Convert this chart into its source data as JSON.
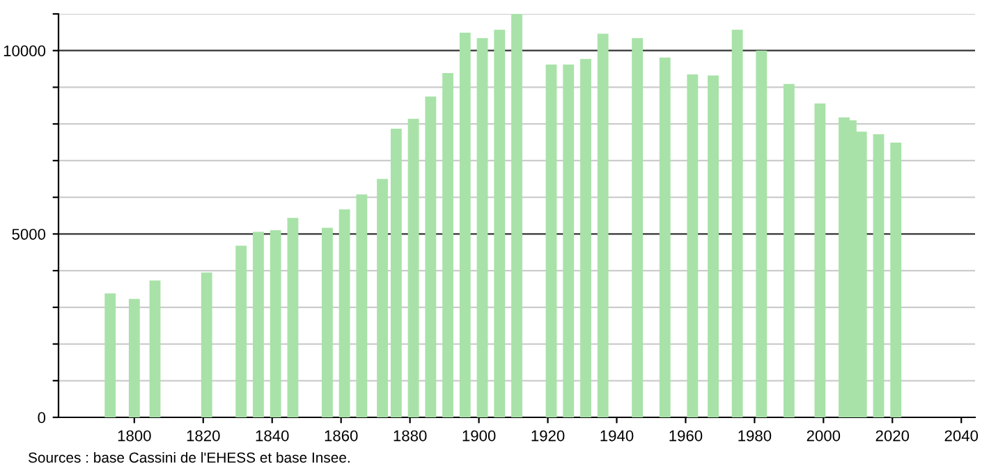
{
  "chart_data": {
    "type": "bar",
    "color": "#a8e2a8",
    "x": [
      1793,
      1800,
      1806,
      1821,
      1831,
      1836,
      1841,
      1846,
      1856,
      1861,
      1866,
      1872,
      1876,
      1881,
      1886,
      1891,
      1896,
      1901,
      1906,
      1911,
      1921,
      1926,
      1931,
      1936,
      1946,
      1954,
      1962,
      1968,
      1975,
      1982,
      1990,
      1999,
      2006,
      2008,
      2011,
      2016,
      2021
    ],
    "values": [
      3380,
      3230,
      3730,
      3950,
      4680,
      5060,
      5100,
      5440,
      5170,
      5670,
      6080,
      6500,
      7870,
      8140,
      8750,
      9390,
      10490,
      10340,
      10570,
      11000,
      9620,
      9620,
      9770,
      10460,
      10340,
      9810,
      9350,
      9320,
      10570,
      10000,
      9090,
      8560,
      8180,
      8100,
      7790,
      7720,
      7490
    ],
    "xlim": [
      1778,
      2044
    ],
    "ylim": [
      0,
      11000
    ],
    "xticks": [
      1800,
      1820,
      1840,
      1860,
      1880,
      1900,
      1920,
      1940,
      1960,
      1980,
      2000,
      2020,
      2040
    ],
    "yticks": [
      0,
      {
        "value": 1000,
        "label": null
      },
      {
        "value": 2000,
        "label": null
      },
      {
        "value": 3000,
        "label": null
      },
      {
        "value": 4000,
        "label": null
      },
      5000,
      {
        "value": 6000,
        "label": null
      },
      {
        "value": 7000,
        "label": null
      },
      {
        "value": 8000,
        "label": null
      },
      {
        "value": 9000,
        "label": null
      },
      10000,
      {
        "value": 11000,
        "label": null
      }
    ],
    "grid": "y",
    "annotations": [
      "Sources : base Cassini de l'EHESS et base Insee."
    ]
  }
}
